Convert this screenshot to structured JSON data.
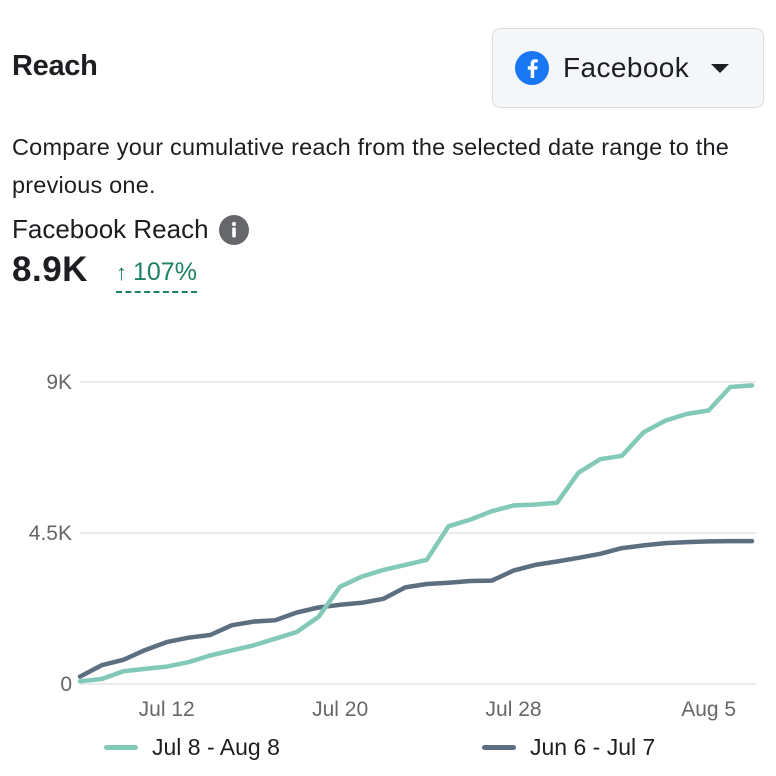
{
  "header": {
    "title": "Reach"
  },
  "platform_select": {
    "label": "Facebook",
    "icon": "facebook-icon",
    "brand_color": "#1877f2"
  },
  "description": "Compare your cumulative reach from the selected date range to the previous one.",
  "metric": {
    "label": "Facebook Reach",
    "value": "8.9K",
    "change": "107%",
    "change_color": "#1d8165"
  },
  "chart_data": {
    "type": "line",
    "x_ticks": [
      "Jul 12",
      "Jul 20",
      "Jul 28",
      "Aug 5"
    ],
    "y_ticks": [
      "0",
      "4.5K",
      "9K"
    ],
    "ylim": [
      0,
      9000
    ],
    "grid": true,
    "legend_placement": "bottom",
    "x_index_of_ticks": [
      4,
      12,
      20,
      29
    ],
    "series": [
      {
        "name": "Jul 8 - Aug 8",
        "color": "#82c9b8",
        "values": [
          80,
          150,
          380,
          450,
          520,
          650,
          850,
          1000,
          1150,
          1350,
          1550,
          2000,
          2900,
          3200,
          3400,
          3550,
          3700,
          4700,
          4900,
          5150,
          5320,
          5350,
          5400,
          6300,
          6700,
          6800,
          7500,
          7850,
          8050,
          8150,
          8850,
          8900
        ]
      },
      {
        "name": "Jun 6 - Jul 7",
        "color": "#5c6f81",
        "values": [
          220,
          560,
          720,
          1010,
          1250,
          1380,
          1460,
          1750,
          1860,
          1900,
          2130,
          2280,
          2360,
          2420,
          2540,
          2880,
          2980,
          3020,
          3070,
          3080,
          3380,
          3550,
          3650,
          3760,
          3880,
          4050,
          4130,
          4200,
          4230,
          4250,
          4260,
          4260
        ]
      }
    ]
  }
}
